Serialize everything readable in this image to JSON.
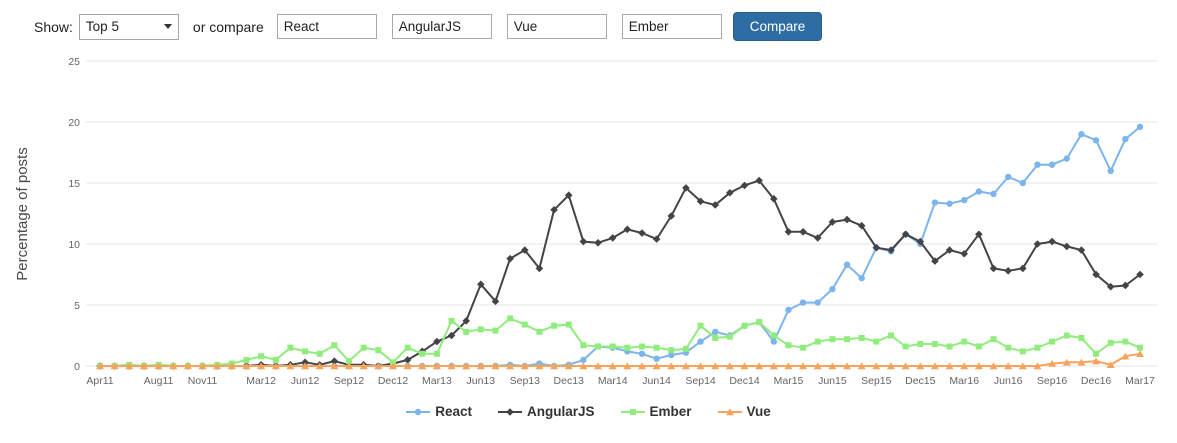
{
  "controls": {
    "show_label": "Show:",
    "select_value": "Top 5",
    "or_compare_label": "or compare",
    "inputs": [
      "React",
      "AngularJS",
      "Vue",
      "Ember"
    ],
    "button_label": "Compare",
    "button_color": "#2e6da4"
  },
  "chart_data": {
    "type": "line",
    "title": "",
    "xlabel": "",
    "ylabel": "Percentage of posts",
    "ylim": [
      0,
      25
    ],
    "yticks": [
      0,
      5,
      10,
      15,
      20,
      25
    ],
    "x_unit": "month",
    "x_start": "Apr 2011",
    "x_end": "Mar 2017",
    "grid": "horizontal",
    "legend_position": "bottom",
    "xticks": [
      {
        "i": 0,
        "label": "Apr11"
      },
      {
        "i": 4,
        "label": "Aug11"
      },
      {
        "i": 7,
        "label": "Nov11"
      },
      {
        "i": 11,
        "label": "Mar12"
      },
      {
        "i": 14,
        "label": "Jun12"
      },
      {
        "i": 17,
        "label": "Sep12"
      },
      {
        "i": 20,
        "label": "Dec12"
      },
      {
        "i": 23,
        "label": "Mar13"
      },
      {
        "i": 26,
        "label": "Jun13"
      },
      {
        "i": 29,
        "label": "Sep13"
      },
      {
        "i": 32,
        "label": "Dec13"
      },
      {
        "i": 35,
        "label": "Mar14"
      },
      {
        "i": 38,
        "label": "Jun14"
      },
      {
        "i": 41,
        "label": "Sep14"
      },
      {
        "i": 44,
        "label": "Dec14"
      },
      {
        "i": 47,
        "label": "Mar15"
      },
      {
        "i": 50,
        "label": "Jun15"
      },
      {
        "i": 53,
        "label": "Sep15"
      },
      {
        "i": 56,
        "label": "Dec15"
      },
      {
        "i": 59,
        "label": "Mar16"
      },
      {
        "i": 62,
        "label": "Jun16"
      },
      {
        "i": 65,
        "label": "Sep16"
      },
      {
        "i": 68,
        "label": "Dec16"
      },
      {
        "i": 71,
        "label": "Mar17"
      }
    ],
    "series": [
      {
        "name": "React",
        "color": "#7cb5ec",
        "marker": "circle",
        "values": [
          0,
          0,
          0,
          0,
          0,
          0,
          0,
          0,
          0,
          0,
          0,
          0,
          0,
          0,
          0,
          0,
          0,
          0,
          0,
          0,
          0,
          0,
          0,
          0,
          0,
          0,
          0,
          0,
          0.1,
          0,
          0.2,
          0,
          0.1,
          0.5,
          1.6,
          1.5,
          1.2,
          1,
          0.6,
          0.9,
          1.1,
          2,
          2.8,
          2.5,
          3.3,
          3.6,
          2,
          4.6,
          5.2,
          5.2,
          6.3,
          8.3,
          7.2,
          9.7,
          9.4,
          10.8,
          10,
          13.4,
          13.3,
          13.6,
          14.3,
          14.1,
          15.5,
          15,
          16.5,
          16.5,
          17,
          19,
          18.5,
          16,
          18.6,
          19.6
        ]
      },
      {
        "name": "AngularJS",
        "color": "#434348",
        "marker": "diamond",
        "values": [
          0,
          0,
          0,
          0,
          0,
          0,
          0,
          0,
          0,
          0,
          0,
          0.1,
          0,
          0.1,
          0.3,
          0.1,
          0.4,
          0.1,
          0.1,
          0,
          0.2,
          0.5,
          1.2,
          2,
          2.5,
          3.7,
          6.7,
          5.3,
          8.8,
          9.5,
          8,
          12.8,
          14,
          10.2,
          10.1,
          10.5,
          11.2,
          10.9,
          10.4,
          12.3,
          14.6,
          13.5,
          13.2,
          14.2,
          14.8,
          15.2,
          13.7,
          11,
          11,
          10.5,
          11.8,
          12,
          11.5,
          9.7,
          9.5,
          10.8,
          10.2,
          8.6,
          9.5,
          9.2,
          10.8,
          8,
          7.8,
          8,
          10,
          10.2,
          9.8,
          9.5,
          7.5,
          6.5,
          6.6,
          7.5
        ]
      },
      {
        "name": "Ember",
        "color": "#90ed7d",
        "marker": "square",
        "values": [
          0,
          0,
          0.1,
          0,
          0.1,
          0,
          0,
          0,
          0.1,
          0.2,
          0.5,
          0.8,
          0.5,
          1.5,
          1.2,
          1,
          1.7,
          0.4,
          1.5,
          1.3,
          0.3,
          1.5,
          1,
          1,
          3.7,
          2.8,
          3,
          2.9,
          3.9,
          3.4,
          2.8,
          3.3,
          3.4,
          1.7,
          1.6,
          1.6,
          1.5,
          1.6,
          1.5,
          1.3,
          1.4,
          3.3,
          2.3,
          2.4,
          3.3,
          3.6,
          2.5,
          1.7,
          1.5,
          2,
          2.2,
          2.2,
          2.3,
          2,
          2.5,
          1.6,
          1.8,
          1.8,
          1.6,
          2,
          1.6,
          2.2,
          1.5,
          1.2,
          1.5,
          2,
          2.5,
          2.3,
          1,
          1.9,
          2,
          1.5
        ]
      },
      {
        "name": "Vue",
        "color": "#f7a35c",
        "marker": "triangle",
        "values": [
          0,
          0,
          0,
          0,
          0,
          0,
          0,
          0,
          0,
          0,
          0,
          0,
          0,
          0,
          0,
          0,
          0,
          0,
          0,
          0,
          0,
          0,
          0,
          0,
          0,
          0,
          0,
          0,
          0,
          0,
          0,
          0,
          0,
          0,
          0,
          0,
          0,
          0,
          0,
          0,
          0,
          0,
          0,
          0,
          0,
          0,
          0,
          0,
          0,
          0,
          0,
          0,
          0,
          0,
          0,
          0,
          0,
          0,
          0,
          0,
          0,
          0,
          0,
          0,
          0,
          0.2,
          0.3,
          0.3,
          0.4,
          0.1,
          0.8,
          1
        ]
      }
    ]
  }
}
